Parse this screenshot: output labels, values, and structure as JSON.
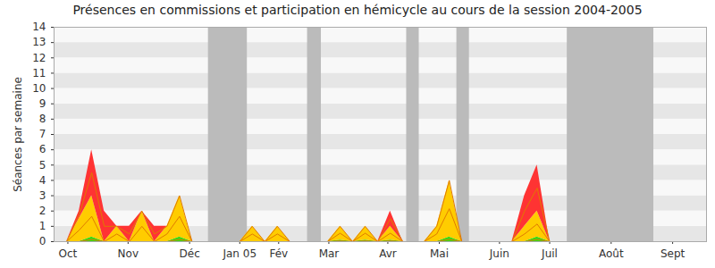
{
  "chart_data": {
    "type": "area",
    "stacked": true,
    "title": "Présences en commissions et participation en hémicycle au cours de la session 2004-2005",
    "y_label": "Séances par semaine",
    "x": [
      1,
      2,
      3,
      4,
      5,
      6,
      7,
      8,
      9,
      10,
      11,
      14.8,
      15.8,
      16.8,
      17.8,
      18.8,
      21.8,
      22.8,
      23.8,
      24.8,
      25.8,
      26.8,
      27.8,
      29.5,
      30.5,
      31.5,
      32.5,
      36.5,
      37.5,
      38.5,
      39.5
    ],
    "series": [
      {
        "color": "#33dd11",
        "values": [
          0,
          0,
          0.3,
          0,
          0,
          0,
          0,
          0,
          0,
          0.3,
          0,
          0,
          0,
          0,
          0,
          0,
          0,
          0.1,
          0,
          0.1,
          0,
          0.1,
          0,
          0,
          0,
          0.3,
          0,
          0,
          0,
          0.3,
          0
        ]
      },
      {
        "color": "#ffcc00",
        "values": [
          0,
          1.5,
          2.7,
          0,
          1,
          0,
          2,
          0,
          1,
          2.7,
          0,
          0,
          1,
          0,
          1,
          0,
          0,
          0.9,
          0,
          0.9,
          0,
          0.9,
          0,
          0,
          1,
          3.7,
          0,
          0,
          1,
          1.7,
          0
        ]
      },
      {
        "color": "#ff3333",
        "values": [
          0,
          0.5,
          3,
          2,
          0,
          1,
          0,
          1,
          0,
          0,
          0,
          0,
          0,
          0,
          0,
          0,
          0,
          0,
          0,
          0,
          0,
          1,
          0,
          0,
          0,
          0,
          0,
          0,
          2,
          3,
          0
        ]
      }
    ],
    "shaded_ranges": [
      [
        12.3,
        15.4
      ],
      [
        20.2,
        21.3
      ],
      [
        28.1,
        29.1
      ],
      [
        32.1,
        33.1
      ],
      [
        40.9,
        47.8
      ]
    ],
    "xlim": [
      0,
      52
    ],
    "xticks": [
      {
        "value": 1.1,
        "label": "Oct"
      },
      {
        "value": 5.9,
        "label": "Nov"
      },
      {
        "value": 10.8,
        "label": "Déc"
      },
      {
        "value": 14.8,
        "label": "Jan 05"
      },
      {
        "value": 17.9,
        "label": "Fév"
      },
      {
        "value": 21.9,
        "label": "Mar"
      },
      {
        "value": 26.6,
        "label": "Avr"
      },
      {
        "value": 30.7,
        "label": "Mai"
      },
      {
        "value": 35.5,
        "label": "Juin"
      },
      {
        "value": 39.5,
        "label": "Juil"
      },
      {
        "value": 44.4,
        "label": "Août"
      },
      {
        "value": 49.3,
        "label": "Sept"
      }
    ],
    "ylim": [
      0,
      14
    ],
    "yticks": [
      0,
      1,
      2,
      3,
      4,
      5,
      6,
      7,
      8,
      9,
      10,
      11,
      12,
      13,
      14
    ],
    "grid": true
  }
}
